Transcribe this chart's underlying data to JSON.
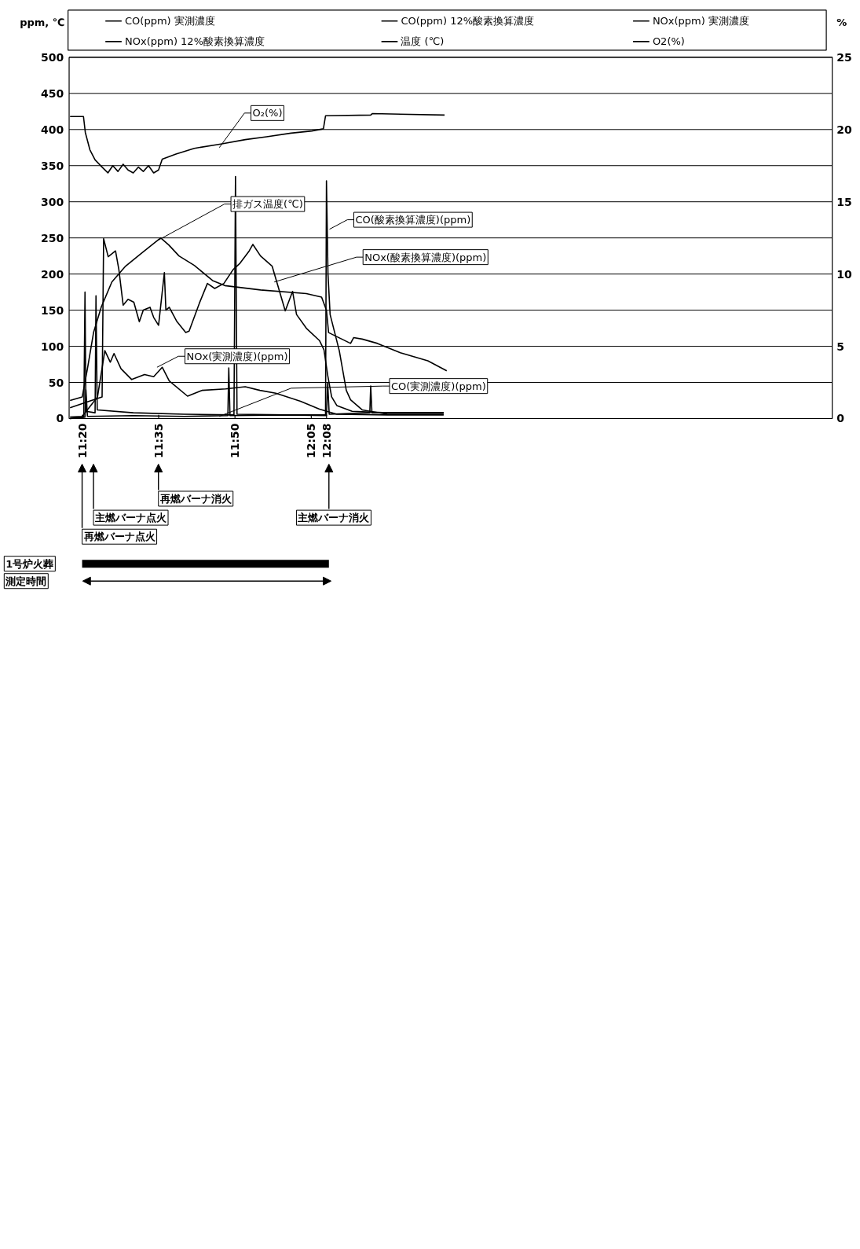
{
  "chart_data": {
    "type": "line",
    "ylabel": "ppm, ℃",
    "y2label": "%",
    "xlim": [
      11.29,
      13.79
    ],
    "xticks": [
      {
        "value": 11.3333,
        "label": "11:20"
      },
      {
        "value": 11.5833,
        "label": "11:35"
      },
      {
        "value": 11.8333,
        "label": "11:50"
      },
      {
        "value": 12.0833,
        "label": "12:05"
      },
      {
        "value": 12.1333,
        "label": "12:08"
      }
    ],
    "ylim": [
      0,
      500
    ],
    "yticks": [
      0,
      50,
      100,
      150,
      200,
      250,
      300,
      350,
      400,
      450,
      500
    ],
    "y2lim": [
      0,
      25
    ],
    "y2ticks": [
      0,
      5,
      10,
      15,
      20,
      25
    ],
    "grid": "y",
    "legend": "top",
    "series": [
      {
        "name": "CO(ppm) 実測濃度",
        "color": "#000000",
        "x": [
          11.293,
          11.342,
          11.345,
          11.35,
          11.5,
          11.667,
          11.81,
          11.813,
          11.817,
          12.0,
          12.133,
          12.137,
          12.142,
          12.275,
          12.278,
          12.282,
          12.517
        ],
        "values": [
          0,
          2,
          40,
          3,
          4,
          3,
          4,
          70,
          4,
          5,
          4,
          50,
          6,
          8,
          45,
          8,
          8
        ]
      },
      {
        "name": "CO(ppm) 12%酸素換算濃度",
        "color": "#000000",
        "x": [
          11.293,
          11.338,
          11.342,
          11.345,
          11.375,
          11.378,
          11.382,
          11.5,
          11.667,
          11.83,
          11.835,
          11.84,
          12.0,
          12.13,
          12.133,
          12.138,
          12.145,
          12.175,
          12.198,
          12.212,
          12.25,
          12.333,
          12.517
        ],
        "values": [
          0,
          2,
          175,
          10,
          8,
          170,
          12,
          8,
          6,
          5,
          335,
          6,
          5,
          5,
          329,
          200,
          144,
          94,
          39,
          26,
          12,
          6,
          6
        ]
      },
      {
        "name": "NOx(ppm) 実測濃度",
        "color": "#000000",
        "x": [
          11.293,
          11.333,
          11.383,
          11.407,
          11.425,
          11.437,
          11.46,
          11.495,
          11.537,
          11.567,
          11.595,
          11.618,
          11.678,
          11.725,
          11.803,
          11.867,
          11.915,
          11.967,
          12.048,
          12.11,
          12.167,
          12.333,
          12.517
        ],
        "values": [
          2,
          3,
          30,
          94,
          78,
          90,
          69,
          54,
          61,
          58,
          71,
          52,
          31,
          39,
          41,
          44,
          39,
          35,
          24,
          13,
          6,
          5,
          5
        ]
      },
      {
        "name": "NOx(ppm) 12%酸素換算濃度",
        "color": "#000000",
        "x": [
          11.293,
          11.398,
          11.403,
          11.418,
          11.442,
          11.453,
          11.467,
          11.483,
          11.502,
          11.52,
          11.533,
          11.555,
          11.567,
          11.583,
          11.602,
          11.607,
          11.618,
          11.642,
          11.672,
          11.683,
          11.717,
          11.743,
          11.767,
          11.797,
          11.827,
          11.85,
          11.88,
          11.892,
          11.917,
          11.955,
          11.998,
          12.022,
          12.035,
          12.067,
          12.11,
          12.125,
          12.137,
          12.15,
          12.167,
          12.217,
          12.333,
          12.517
        ],
        "values": [
          15,
          30,
          249,
          224,
          232,
          206,
          157,
          165,
          161,
          134,
          150,
          154,
          140,
          129,
          202,
          150,
          154,
          135,
          119,
          121,
          160,
          187,
          180,
          187,
          206,
          215,
          232,
          241,
          225,
          211,
          149,
          176,
          144,
          125,
          108,
          95,
          60,
          30,
          18,
          10,
          8,
          8
        ]
      },
      {
        "name": "温度 (℃)",
        "color": "#000000",
        "x": [
          11.293,
          11.333,
          11.35,
          11.37,
          11.395,
          11.43,
          11.475,
          11.528,
          11.59,
          11.617,
          11.65,
          11.7,
          11.76,
          11.8,
          11.917,
          12.067,
          12.117,
          12.133,
          12.14,
          12.212,
          12.222,
          12.25,
          12.3,
          12.375,
          12.465,
          12.527
        ],
        "values": [
          25,
          30,
          69,
          119,
          154,
          189,
          211,
          229,
          250,
          240,
          225,
          212,
          191,
          184,
          178,
          173,
          168,
          150,
          119,
          104,
          112,
          110,
          104,
          91,
          80,
          66
        ]
      },
      {
        "name": "O2(%)",
        "color": "#000000",
        "axis": "y2",
        "x": [
          11.293,
          11.337,
          11.343,
          11.358,
          11.375,
          11.398,
          11.417,
          11.433,
          11.45,
          11.467,
          11.483,
          11.5,
          11.517,
          11.533,
          11.55,
          11.567,
          11.583,
          11.595,
          11.64,
          11.7,
          11.787,
          11.867,
          11.937,
          12.017,
          12.085,
          12.123,
          12.13,
          12.278,
          12.283,
          12.52
        ],
        "values": [
          20.9,
          20.9,
          19.8,
          18.6,
          17.9,
          17.4,
          17.0,
          17.5,
          17.1,
          17.6,
          17.2,
          17.0,
          17.4,
          17.1,
          17.5,
          17.0,
          17.2,
          17.95,
          18.3,
          18.7,
          19.0,
          19.3,
          19.5,
          19.75,
          19.9,
          20.05,
          20.95,
          21.0,
          21.1,
          21.0
        ]
      }
    ],
    "annotations": [
      {
        "text": "O₂(%)",
        "x": 11.782,
        "y": 375
      },
      {
        "text": "排ガス温度(℃)",
        "x": 11.578,
        "y": 246
      },
      {
        "text": "CO(酸素換算濃度)(ppm)",
        "x": 12.143,
        "y": 262
      },
      {
        "text": "NOx(酸素換算濃度)(ppm)",
        "x": 11.962,
        "y": 189
      },
      {
        "text": "NOx(実測濃度)(ppm)",
        "x": 11.578,
        "y": 71
      },
      {
        "text": "CO(実測濃度)(ppm)",
        "x": 11.782,
        "y": 3
      },
      "再燃バーナ点火",
      "主燃バーナ点火",
      "再燃バーナ消火",
      "主燃バーナ消火",
      "1号炉火葬",
      "測定時間"
    ]
  }
}
